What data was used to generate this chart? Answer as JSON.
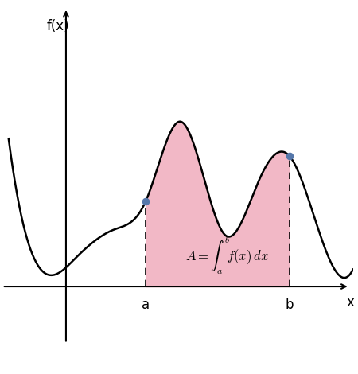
{
  "ylabel": "f(x)",
  "xlabel": "x",
  "curve_color": "#000000",
  "fill_color": "#f2b8c6",
  "fill_alpha": 1.0,
  "dashed_color": "#000000",
  "dot_color": "#5577aa",
  "dot_size": 35,
  "axis_color": "#000000",
  "label_a": "a",
  "label_b": "b",
  "background_color": "#ffffff",
  "xlim": [
    -2.0,
    9.0
  ],
  "ylim": [
    -1.5,
    5.0
  ],
  "a_x": 2.5,
  "b_x": 7.0,
  "curve_lw": 1.8,
  "axis_lw": 1.5
}
